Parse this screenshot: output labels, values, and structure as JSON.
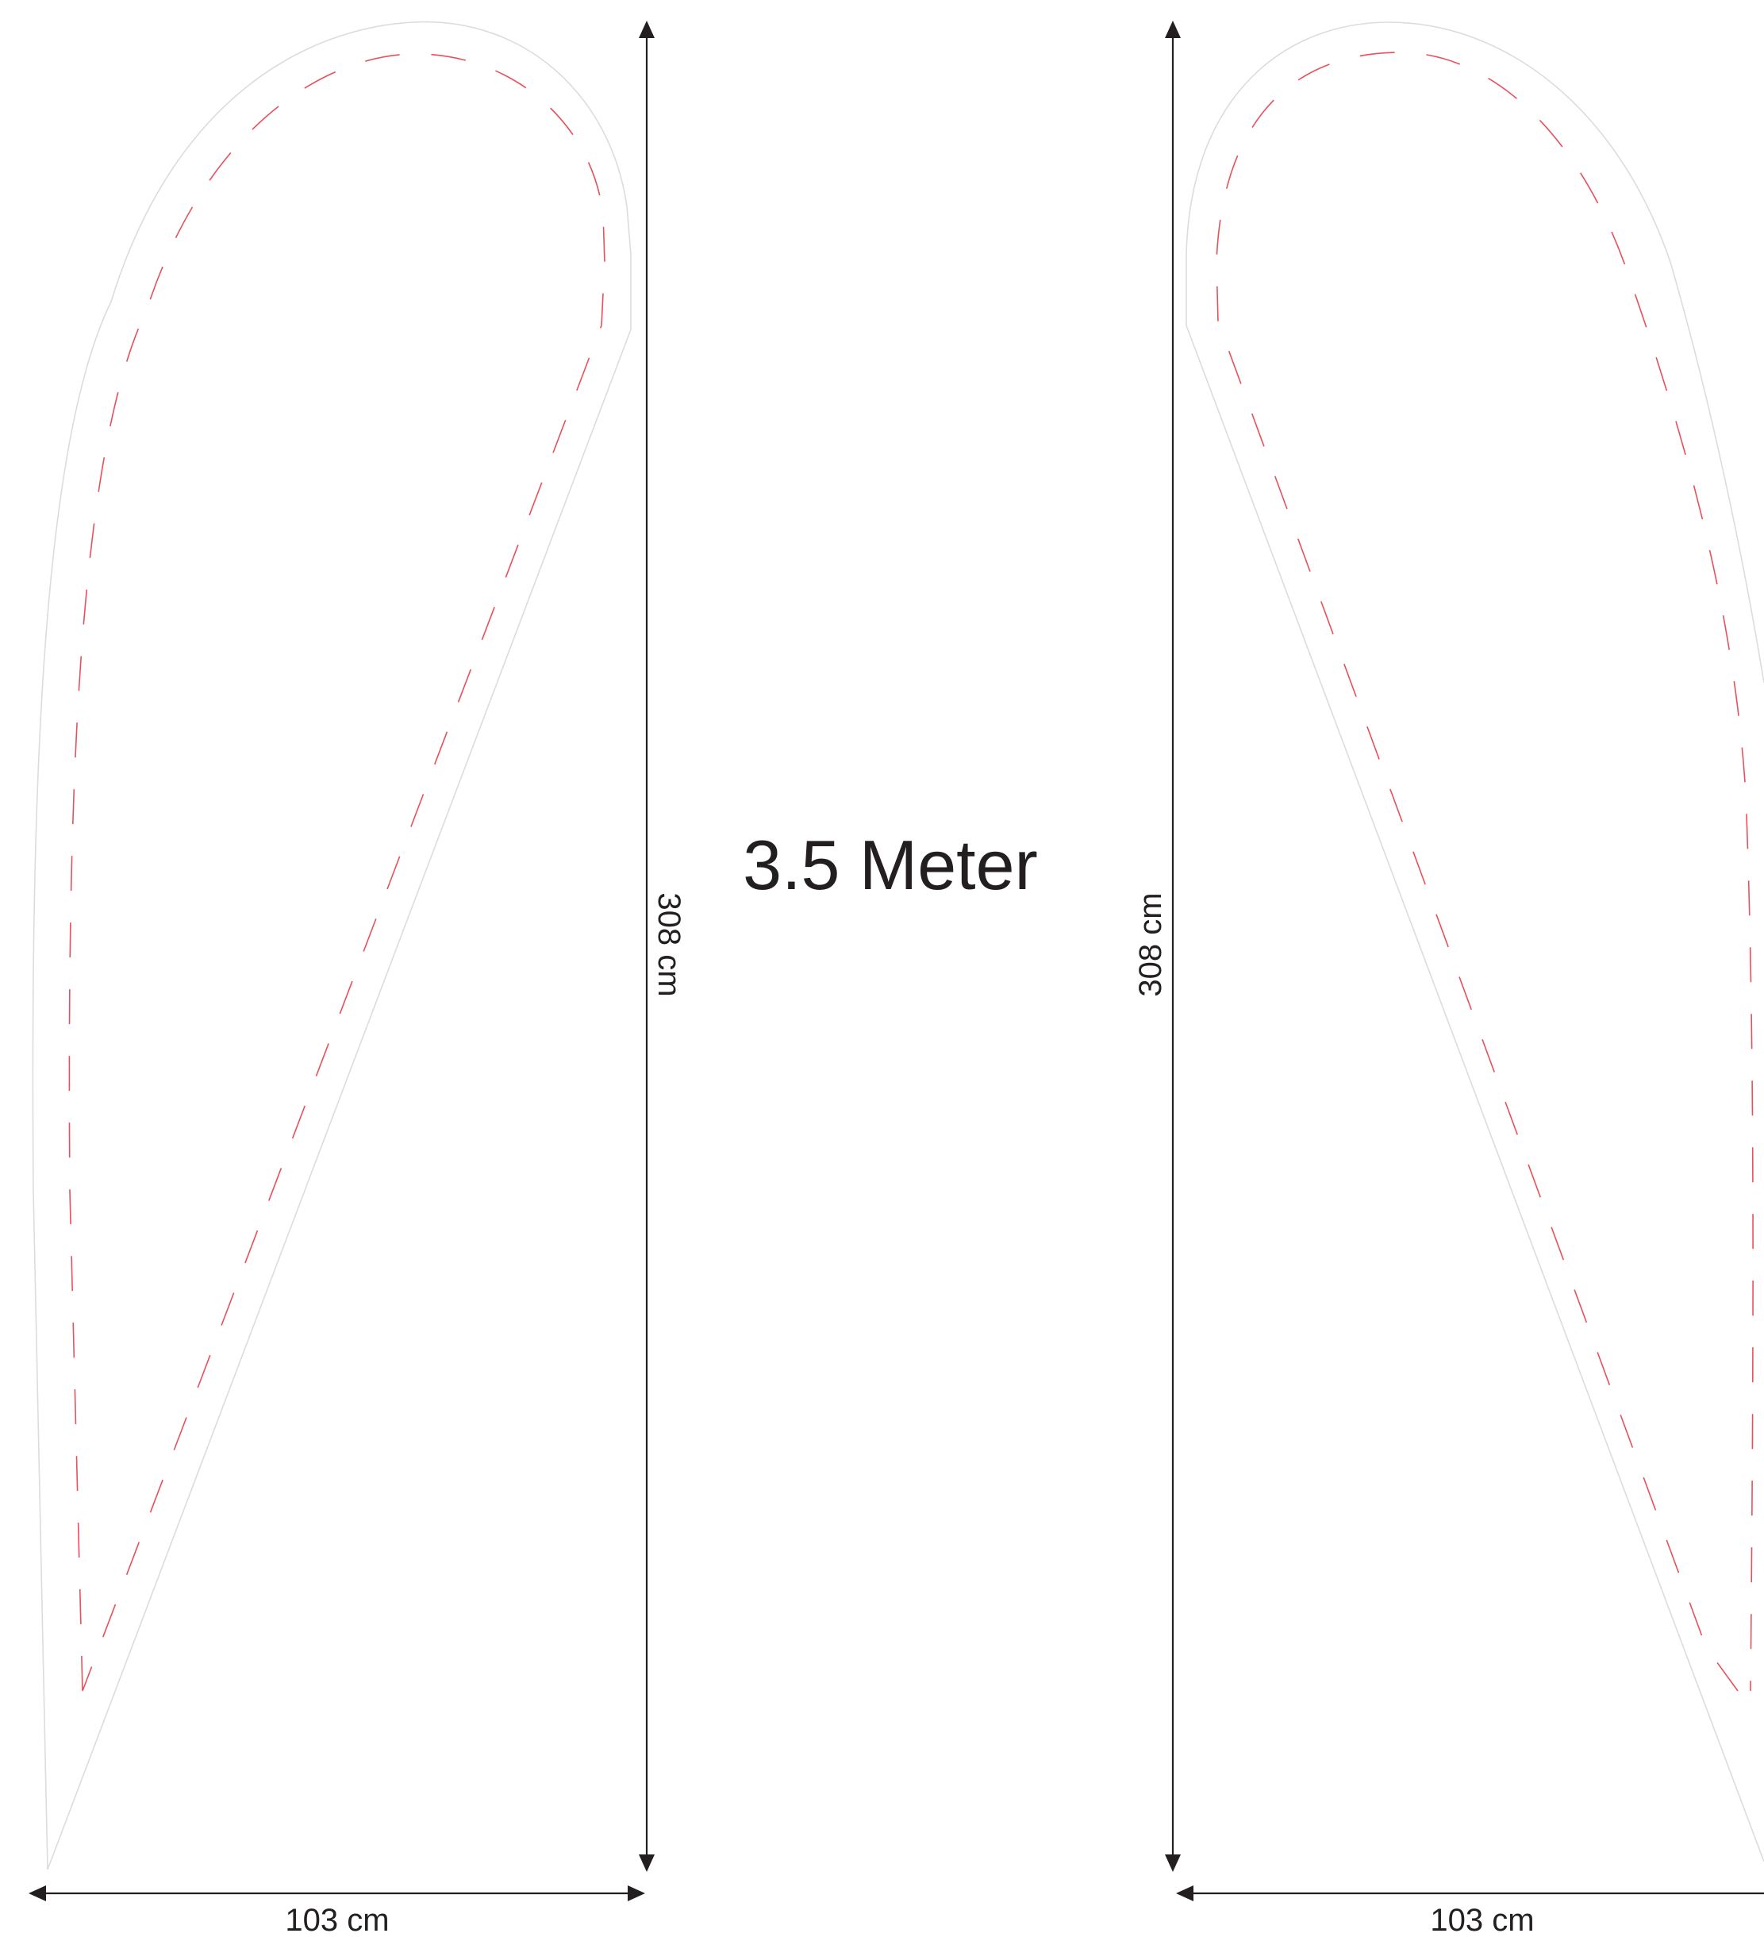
{
  "title": "3.5 Meter",
  "left_flag": {
    "height_label": "308 cm",
    "width_label": "103 cm"
  },
  "right_flag": {
    "height_label": "308 cm",
    "width_label": "103 cm"
  },
  "colors": {
    "outline": "#dcdcdc",
    "seam": "#e8505b",
    "dimension": "#231f20"
  }
}
